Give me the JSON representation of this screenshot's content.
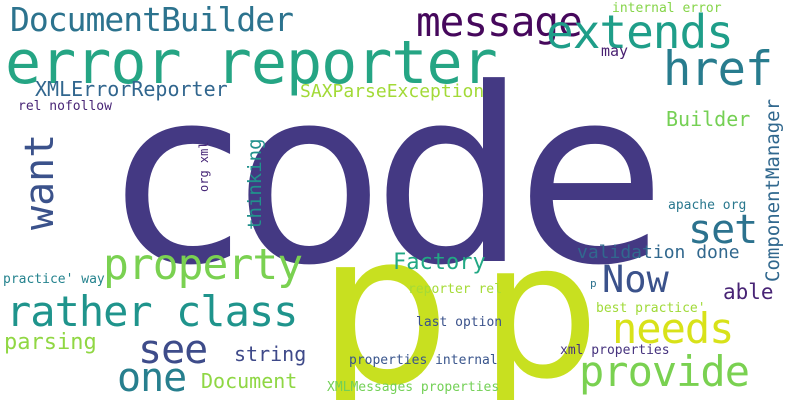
{
  "words": [
    {
      "id": "code",
      "text": "code",
      "color": "#443983",
      "font": "sans",
      "vertical": false
    },
    {
      "id": "p-large",
      "text": "p",
      "color": "#c8e020",
      "font": "sans",
      "vertical": false
    },
    {
      "id": "p-medium",
      "text": "p",
      "color": "#c8e020",
      "font": "sans",
      "vertical": false
    },
    {
      "id": "error-reporter",
      "text": "error reporter",
      "color": "#25a584",
      "font": "mono",
      "vertical": false
    },
    {
      "id": "documentbuilder",
      "text": "DocumentBuilder",
      "color": "#2c738e",
      "font": "mono",
      "vertical": false
    },
    {
      "id": "message",
      "text": "message",
      "color": "#46085c",
      "font": "mono",
      "vertical": false
    },
    {
      "id": "extends",
      "text": "extends",
      "color": "#1f9e89",
      "font": "mono",
      "vertical": false
    },
    {
      "id": "href",
      "text": "href",
      "color": "#287c8e",
      "font": "mono",
      "vertical": false
    },
    {
      "id": "internal-error",
      "text": "internal error",
      "color": "#86d549",
      "font": "mono",
      "vertical": false
    },
    {
      "id": "may",
      "text": "may",
      "color": "#481f70",
      "font": "mono",
      "vertical": false
    },
    {
      "id": "xmlerrorreporter",
      "text": "XMLErrorReporter",
      "color": "#31668e",
      "font": "mono",
      "vertical": false
    },
    {
      "id": "saxparseexception",
      "text": "SAXParseException",
      "color": "#a2da37",
      "font": "mono",
      "vertical": false
    },
    {
      "id": "builder",
      "text": "Builder",
      "color": "#75d054",
      "font": "mono",
      "vertical": false
    },
    {
      "id": "rel-nofollow",
      "text": "rel nofollow",
      "color": "#482576",
      "font": "mono",
      "vertical": false
    },
    {
      "id": "want",
      "text": "want",
      "color": "#3b528b",
      "font": "mono",
      "vertical": true
    },
    {
      "id": "org-xml",
      "text": "org xml",
      "color": "#482878",
      "font": "mono",
      "vertical": true
    },
    {
      "id": "thinking",
      "text": "thinking",
      "color": "#21918c",
      "font": "mono",
      "vertical": true
    },
    {
      "id": "componentmanager",
      "text": "ComponentManager",
      "color": "#31688e",
      "font": "mono",
      "vertical": true
    },
    {
      "id": "apache-org",
      "text": "apache org",
      "color": "#2a788e",
      "font": "mono",
      "vertical": false
    },
    {
      "id": "set",
      "text": "set",
      "color": "#2c728e",
      "font": "mono",
      "vertical": false
    },
    {
      "id": "property",
      "text": "property",
      "color": "#7ad151",
      "font": "mono",
      "vertical": false
    },
    {
      "id": "factory",
      "text": "Factory",
      "color": "#22a884",
      "font": "mono",
      "vertical": false
    },
    {
      "id": "validation-done",
      "text": "validation done",
      "color": "#31688e",
      "font": "mono",
      "vertical": false
    },
    {
      "id": "now",
      "text": "Now",
      "color": "#3b528b",
      "font": "mono",
      "vertical": false
    },
    {
      "id": "practice-way",
      "text": "practice' way",
      "color": "#25838e",
      "font": "mono",
      "vertical": false
    },
    {
      "id": "p-small",
      "text": "p",
      "color": "#2c728e",
      "font": "mono",
      "vertical": false
    },
    {
      "id": "able",
      "text": "able",
      "color": "#482475",
      "font": "mono",
      "vertical": false
    },
    {
      "id": "reporter-rel",
      "text": "reporter rel",
      "color": "#a5db36",
      "font": "mono",
      "vertical": false
    },
    {
      "id": "best-practice",
      "text": "best practice'",
      "color": "#a0da39",
      "font": "mono",
      "vertical": false
    },
    {
      "id": "rather-class",
      "text": "rather class",
      "color": "#1f948c",
      "font": "mono",
      "vertical": false
    },
    {
      "id": "needs",
      "text": "needs",
      "color": "#d8e219",
      "font": "mono",
      "vertical": false
    },
    {
      "id": "parsing",
      "text": "parsing",
      "color": "#90d743",
      "font": "mono",
      "vertical": false
    },
    {
      "id": "see",
      "text": "see",
      "color": "#3e4c8a",
      "font": "mono",
      "vertical": false
    },
    {
      "id": "last-option",
      "text": "last option",
      "color": "#3b528b",
      "font": "mono",
      "vertical": false
    },
    {
      "id": "string",
      "text": "string",
      "color": "#3e4989",
      "font": "mono",
      "vertical": false
    },
    {
      "id": "provide",
      "text": "provide",
      "color": "#7ad151",
      "font": "mono",
      "vertical": false
    },
    {
      "id": "one",
      "text": "one",
      "color": "#277f8e",
      "font": "mono",
      "vertical": false
    },
    {
      "id": "document",
      "text": "Document",
      "color": "#8fd744",
      "font": "mono",
      "vertical": false
    },
    {
      "id": "properties-internal",
      "text": "properties internal",
      "color": "#39558c",
      "font": "mono",
      "vertical": false
    },
    {
      "id": "xml-properties",
      "text": "xml properties",
      "color": "#46337e",
      "font": "mono",
      "vertical": false
    },
    {
      "id": "xmlmessages-properties",
      "text": "XMLMessages properties",
      "color": "#73d056",
      "font": "mono",
      "vertical": false
    }
  ]
}
